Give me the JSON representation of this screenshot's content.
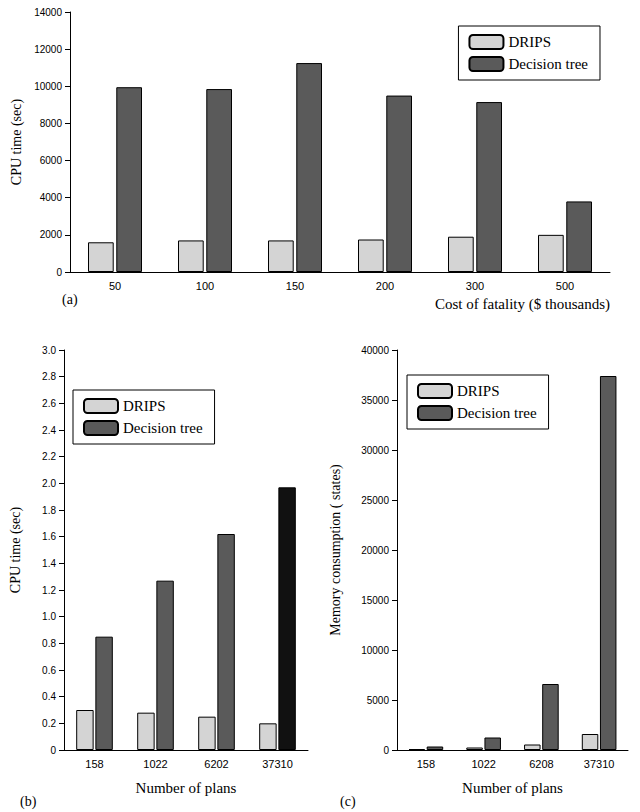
{
  "chart_data": [
    {
      "type": "bar",
      "annotations": [
        "(a)"
      ],
      "x_label": "Cost of fatality ($ thousands)",
      "y_label": "CPU time (sec)",
      "categories": [
        "50",
        "100",
        "150",
        "200",
        "300",
        "500"
      ],
      "series": [
        {
          "name": "DRIPS",
          "color": "#d4d4d4",
          "values": [
            1600,
            1700,
            1700,
            1750,
            1900,
            2000
          ]
        },
        {
          "name": "Decision tree",
          "color": "#5a5a5a",
          "values": [
            9950,
            9850,
            11250,
            9500,
            9150,
            3800
          ]
        }
      ],
      "ylim": [
        0,
        14000
      ],
      "yticks": [
        0,
        2000,
        4000,
        6000,
        8000,
        10000,
        12000,
        14000
      ],
      "grid": false,
      "legend": "upper right"
    },
    {
      "type": "bar",
      "annotations": [
        "(b)"
      ],
      "x_label": "Number of plans",
      "y_label": "CPU time (sec)",
      "categories": [
        "158",
        "1022",
        "6202",
        "37310"
      ],
      "series": [
        {
          "name": "DRIPS",
          "color": "#d4d4d4",
          "values": [
            0.3,
            0.28,
            0.25,
            0.2
          ]
        },
        {
          "name": "Decision tree",
          "color": "#5a5a5a",
          "colors": [
            "#5a5a5a",
            "#5a5a5a",
            "#5a5a5a",
            "#111111"
          ],
          "values": [
            0.85,
            1.27,
            1.62,
            1.97
          ]
        }
      ],
      "ylim": [
        0,
        3.0
      ],
      "yticks": [
        0,
        0.2,
        0.4,
        0.6,
        0.8,
        {
          "value": 1.0,
          "label": "1.0"
        },
        1.2,
        1.4,
        1.6,
        1.8,
        {
          "value": 2.0,
          "label": "2.0"
        },
        2.2,
        2.4,
        2.6,
        2.8,
        {
          "value": 3.0,
          "label": "3.0"
        }
      ],
      "grid": false,
      "legend": "upper left"
    },
    {
      "type": "bar",
      "annotations": [
        "(c)"
      ],
      "x_label": "Number of plans",
      "y_label": "Memory consumption ( states)",
      "categories": [
        "158",
        "1022",
        "6208",
        "37310"
      ],
      "series": [
        {
          "name": "DRIPS",
          "color": "#d4d4d4",
          "values": [
            100,
            250,
            550,
            1600
          ]
        },
        {
          "name": "Decision tree",
          "color": "#5a5a5a",
          "values": [
            350,
            1250,
            6600,
            37400
          ]
        }
      ],
      "ylim": [
        0,
        40000
      ],
      "yticks": [
        0,
        5000,
        10000,
        15000,
        20000,
        25000,
        30000,
        35000,
        40000
      ],
      "grid": false,
      "legend": "upper left"
    }
  ]
}
